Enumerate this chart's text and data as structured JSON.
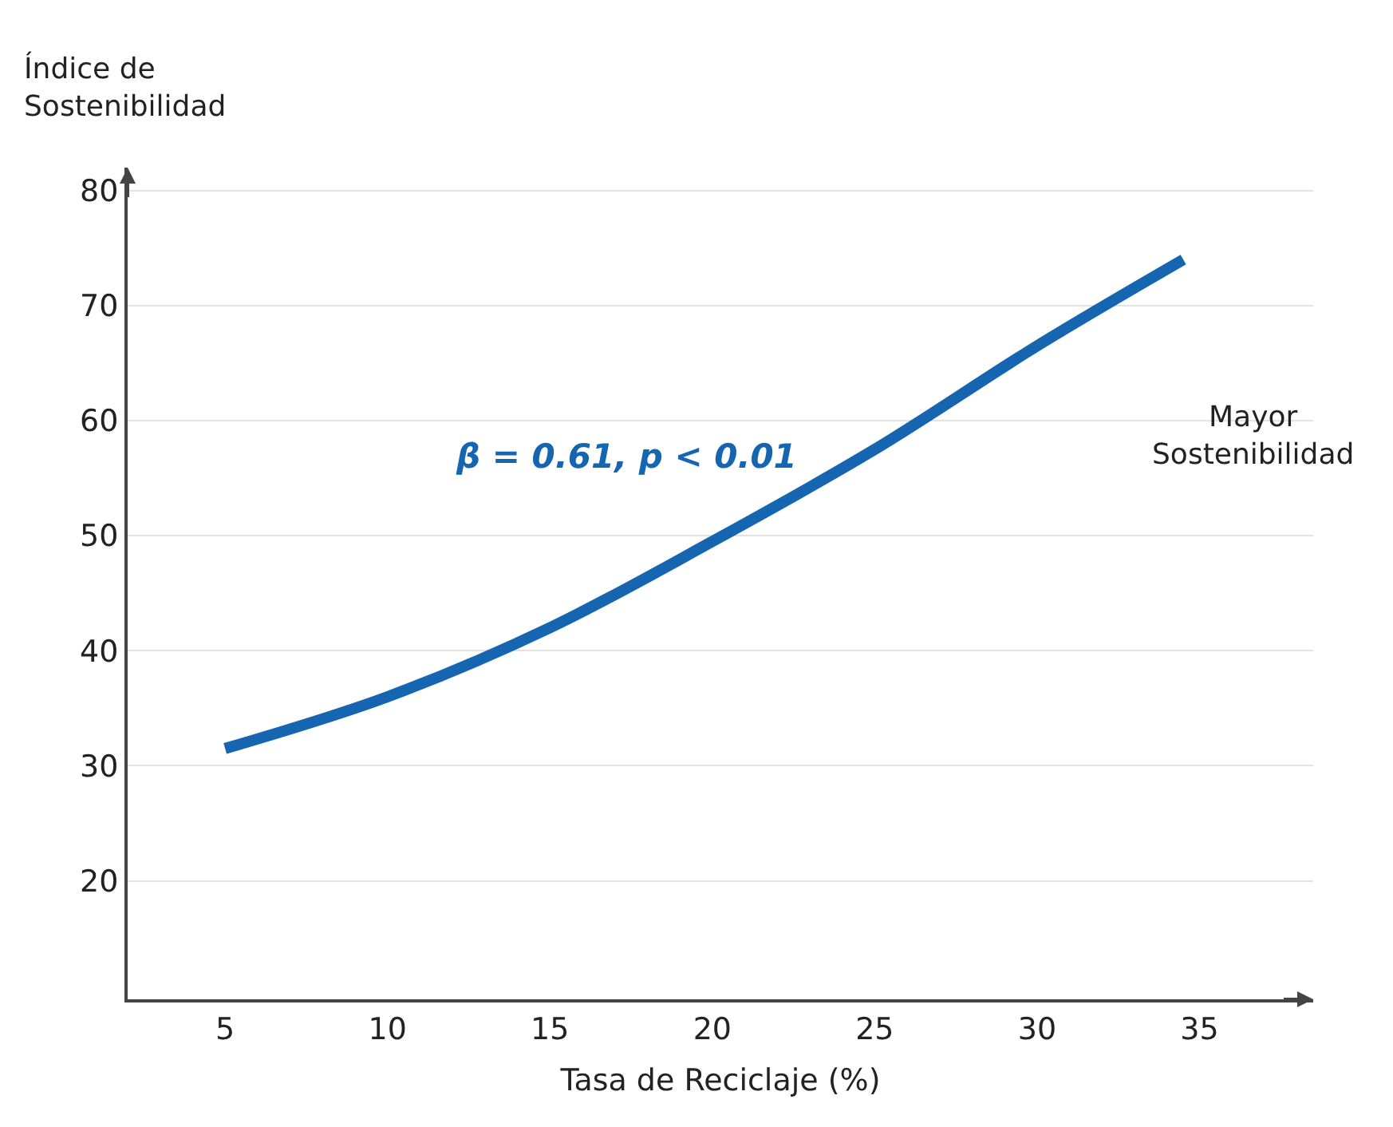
{
  "chart_data": {
    "type": "line",
    "x": [
      5,
      10,
      15,
      20,
      25,
      30,
      34.5
    ],
    "series": [
      {
        "color": "#1565b0",
        "values": [
          31.5,
          36,
          42,
          49.5,
          57.5,
          66.5,
          74
        ]
      }
    ],
    "xlabel": "Tasa de Reciclaje (%)",
    "ylabel": "Índice de\nSostenibilidad",
    "xlim": [
      2,
      38.5
    ],
    "ylim": [
      9.7,
      82
    ],
    "xticks": [
      5,
      10,
      15,
      20,
      25,
      30,
      35
    ],
    "yticks": [
      20,
      30,
      40,
      50,
      60,
      70,
      80
    ],
    "grid": "y",
    "legend": false,
    "marker": "none",
    "line_style": "solid",
    "annotations": [
      "β = 0.61, p < 0.01",
      "Mayor\nSostenibilidad"
    ]
  }
}
